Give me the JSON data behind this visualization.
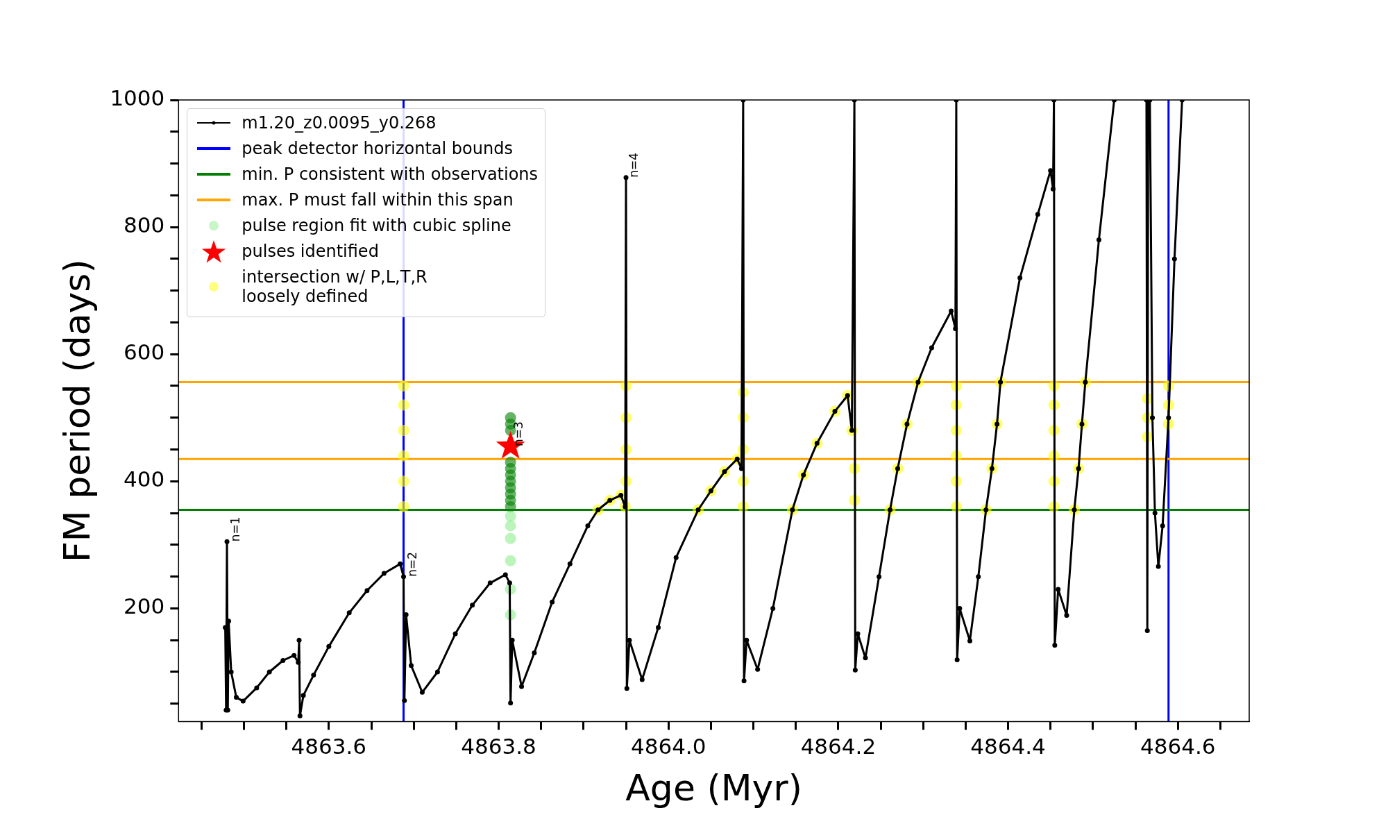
{
  "chart_data": {
    "type": "line",
    "xlabel": "Age (Myr)",
    "ylabel": "FM period (days)",
    "xlim": [
      4863.423,
      4864.684
    ],
    "xticks": [
      {
        "value": 4863.45,
        "label": null
      },
      {
        "value": 4863.5,
        "label": null
      },
      {
        "value": 4863.55,
        "label": null
      },
      4863.6,
      {
        "value": 4863.65,
        "label": null
      },
      {
        "value": 4863.7,
        "label": null
      },
      {
        "value": 4863.75,
        "label": null
      },
      4863.8,
      {
        "value": 4863.85,
        "label": null
      },
      {
        "value": 4863.9,
        "label": null
      },
      {
        "value": 4863.95,
        "label": null
      },
      {
        "value": 4864.0,
        "label": "4864.0"
      },
      {
        "value": 4864.05,
        "label": null
      },
      {
        "value": 4864.1,
        "label": null
      },
      {
        "value": 4864.15,
        "label": null
      },
      4864.2,
      {
        "value": 4864.25,
        "label": null
      },
      {
        "value": 4864.3,
        "label": null
      },
      {
        "value": 4864.35,
        "label": null
      },
      4864.4,
      {
        "value": 4864.45,
        "label": null
      },
      {
        "value": 4864.5,
        "label": null
      },
      {
        "value": 4864.55,
        "label": null
      },
      4864.6,
      {
        "value": 4864.65,
        "label": null
      }
    ],
    "ylim": [
      22,
      1000
    ],
    "yticks": [
      {
        "value": 50,
        "label": null
      },
      {
        "value": 100,
        "label": null
      },
      {
        "value": 150,
        "label": null
      },
      200,
      {
        "value": 250,
        "label": null
      },
      {
        "value": 300,
        "label": null
      },
      {
        "value": 350,
        "label": null
      },
      400,
      {
        "value": 450,
        "label": null
      },
      {
        "value": 500,
        "label": null
      },
      {
        "value": 550,
        "label": null
      },
      600,
      {
        "value": 650,
        "label": null
      },
      {
        "value": 700,
        "label": null
      },
      {
        "value": 750,
        "label": null
      },
      800,
      {
        "value": 850,
        "label": null
      },
      {
        "value": 900,
        "label": null
      },
      {
        "value": 950,
        "label": null
      },
      1000
    ],
    "grid": false,
    "legend": "top left",
    "series": [
      {
        "name": "m1.20_z0.0095_y0.268",
        "color": "#000000",
        "marker": "circle",
        "x": [
          4863.478,
          4863.479,
          4863.48,
          4863.481,
          4863.482,
          4863.485,
          4863.491,
          4863.499,
          4863.515,
          4863.53,
          4863.546,
          4863.559,
          4863.564,
          4863.565,
          4863.566,
          4863.57,
          4863.582,
          4863.6,
          4863.624,
          4863.645,
          4863.665,
          4863.684,
          4863.688,
          4863.689,
          4863.691,
          4863.697,
          4863.71,
          4863.728,
          4863.749,
          4863.769,
          4863.79,
          4863.808,
          4863.813,
          4863.814,
          4863.816,
          4863.827,
          4863.842,
          4863.863,
          4863.884,
          4863.905,
          4863.917,
          4863.931,
          4863.944,
          4863.949,
          4863.95,
          4863.951,
          4863.954,
          4863.969,
          4863.988,
          4864.009,
          4864.035,
          4864.05,
          4864.066,
          4864.081,
          4864.086,
          4864.088,
          4864.089,
          4864.092,
          4864.105,
          4864.123,
          4864.146,
          4864.159,
          4864.175,
          4864.196,
          4864.211,
          4864.216,
          4864.219,
          4864.22,
          4864.223,
          4864.232,
          4864.248,
          4864.261,
          4864.27,
          4864.281,
          4864.294,
          4864.31,
          4864.333,
          4864.338,
          4864.339,
          4864.34,
          4864.343,
          4864.355,
          4864.365,
          4864.374,
          4864.381,
          4864.387,
          4864.391,
          4864.414,
          4864.435,
          4864.45,
          4864.453,
          4864.454,
          4864.455,
          4864.459,
          4864.469,
          4864.478,
          4864.483,
          4864.487,
          4864.491,
          4864.507,
          4864.525,
          4864.544,
          4864.563,
          4864.564,
          4864.565,
          4864.566,
          4864.567,
          4864.57,
          4864.573,
          4864.577,
          4864.582,
          4864.589,
          4864.596,
          4864.605
        ],
        "values": [
          170,
          40,
          305,
          40,
          180,
          100,
          60,
          54,
          75,
          100,
          118,
          126,
          115,
          150,
          31,
          63,
          95,
          140,
          193,
          228,
          255,
          270,
          250,
          55,
          190,
          110,
          68,
          100,
          160,
          205,
          240,
          253,
          240,
          51,
          150,
          77,
          130,
          210,
          270,
          330,
          355,
          370,
          378,
          360,
          878,
          74,
          150,
          88,
          170,
          280,
          355,
          385,
          415,
          435,
          420,
          1000,
          86,
          150,
          104,
          200,
          355,
          410,
          460,
          510,
          535,
          480,
          1000,
          103,
          160,
          122,
          250,
          355,
          420,
          490,
          556,
          610,
          668,
          640,
          1000,
          119,
          200,
          149,
          250,
          355,
          420,
          490,
          556,
          720,
          820,
          889,
          860,
          1000,
          142,
          230,
          189,
          355,
          420,
          490,
          556,
          780,
          1000,
          null,
          1000,
          165,
          1000,
          null,
          1000,
          500,
          350,
          266,
          330,
          500,
          750,
          1000
        ]
      },
      {
        "name": "pulse region fit with cubic spline",
        "type": "scatter",
        "color": "#90ee90",
        "marker": "circle",
        "x": [
          4863.814,
          4863.814,
          4863.814,
          4863.814,
          4863.814,
          4863.814
        ],
        "values": [
          190,
          230,
          275,
          310,
          330,
          345
        ]
      },
      {
        "type": "scatter",
        "color": "#008000",
        "marker": "circle",
        "x": [
          4863.814,
          4863.814,
          4863.814,
          4863.814,
          4863.814,
          4863.814,
          4863.814,
          4863.814,
          4863.814,
          4863.814,
          4863.814
        ],
        "values": [
          360,
          370,
          380,
          390,
          400,
          410,
          420,
          430,
          480,
          490,
          500
        ]
      },
      {
        "name": "pulses identified",
        "type": "scatter",
        "color": "#ff0000",
        "marker": "star",
        "x": [
          4863.814
        ],
        "values": [
          455
        ]
      },
      {
        "name": "intersection w/ P,L,T,R\nloosely defined",
        "type": "scatter",
        "color": "#ffff00",
        "marker": "circle",
        "x": [
          4863.688,
          4863.688,
          4863.688,
          4863.688,
          4863.688,
          4863.688,
          4863.917,
          4863.931,
          4863.944,
          4863.949,
          4863.95,
          4863.95,
          4863.95,
          4863.95,
          4864.035,
          4864.05,
          4864.066,
          4864.081,
          4864.088,
          4864.088,
          4864.088,
          4864.088,
          4864.088,
          4864.146,
          4864.159,
          4864.175,
          4864.196,
          4864.211,
          4864.216,
          4864.219,
          4864.219,
          4864.261,
          4864.27,
          4864.281,
          4864.294,
          4864.339,
          4864.339,
          4864.339,
          4864.339,
          4864.339,
          4864.339,
          4864.374,
          4864.381,
          4864.387,
          4864.391,
          4864.454,
          4864.454,
          4864.454,
          4864.454,
          4864.454,
          4864.454,
          4864.478,
          4864.483,
          4864.487,
          4864.491,
          4864.564,
          4864.564,
          4864.564,
          4864.589,
          4864.589,
          4864.589
        ],
        "values": [
          360,
          400,
          440,
          480,
          520,
          550,
          355,
          370,
          378,
          360,
          400,
          450,
          500,
          550,
          355,
          385,
          415,
          435,
          360,
          400,
          450,
          500,
          540,
          355,
          410,
          460,
          510,
          535,
          480,
          420,
          370,
          355,
          420,
          490,
          556,
          360,
          400,
          440,
          480,
          520,
          550,
          355,
          420,
          490,
          556,
          360,
          400,
          440,
          480,
          520,
          550,
          355,
          420,
          490,
          556,
          470,
          500,
          530,
          490,
          520,
          550
        ]
      }
    ],
    "ref_lines": [
      {
        "axis": "x",
        "value": 4863.688,
        "label": "peak detector horizontal bounds",
        "color": "#0000ff"
      },
      {
        "axis": "x",
        "value": 4864.589,
        "color": "#0000ff"
      },
      {
        "axis": "y",
        "value": 355,
        "label": "min. P consistent with observations",
        "color": "#008000"
      },
      {
        "axis": "y",
        "value": 556,
        "label": "max. P must fall within this span",
        "color": "#ffa500"
      },
      {
        "axis": "y",
        "value": 435,
        "color": "#ffa500"
      }
    ],
    "annotations": [
      {
        "text": "n=1",
        "x": 4863.481,
        "y": 305
      },
      {
        "text": "n=2",
        "x": 4863.689,
        "y": 250
      },
      {
        "text": "n=3",
        "x": 4863.814,
        "y": 455
      },
      {
        "text": "n=4",
        "x": 4863.95,
        "y": 878
      }
    ]
  }
}
